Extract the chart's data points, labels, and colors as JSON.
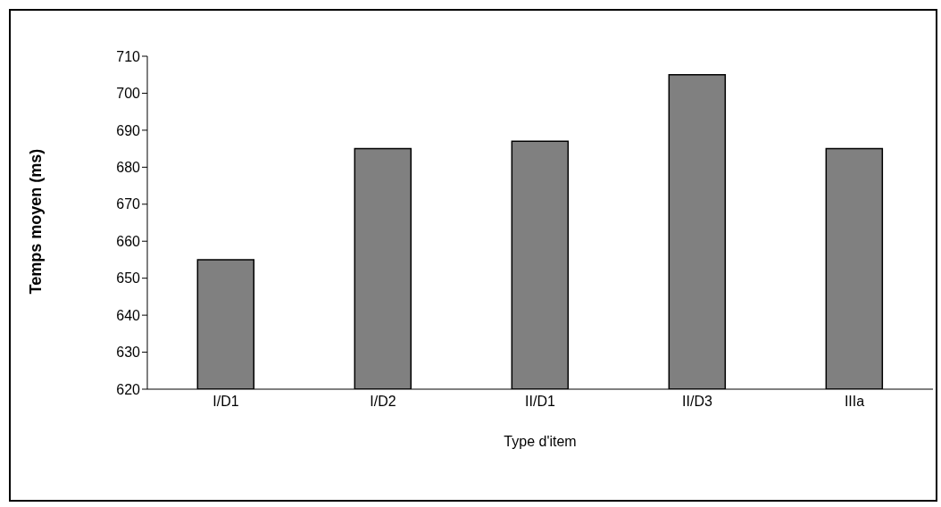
{
  "chart_data": {
    "type": "bar",
    "xlabel": "Type d'item",
    "ylabel": "Temps moyen (ms)",
    "categories": [
      "I/D1",
      "I/D2",
      "II/D1",
      "II/D3",
      "IIIa"
    ],
    "values": [
      655,
      685,
      687,
      705,
      685
    ],
    "color": "#808080",
    "ylim": [
      620,
      710
    ],
    "yticks": [
      620,
      630,
      640,
      650,
      660,
      670,
      680,
      690,
      700,
      710
    ],
    "grid": false,
    "legend": false
  }
}
